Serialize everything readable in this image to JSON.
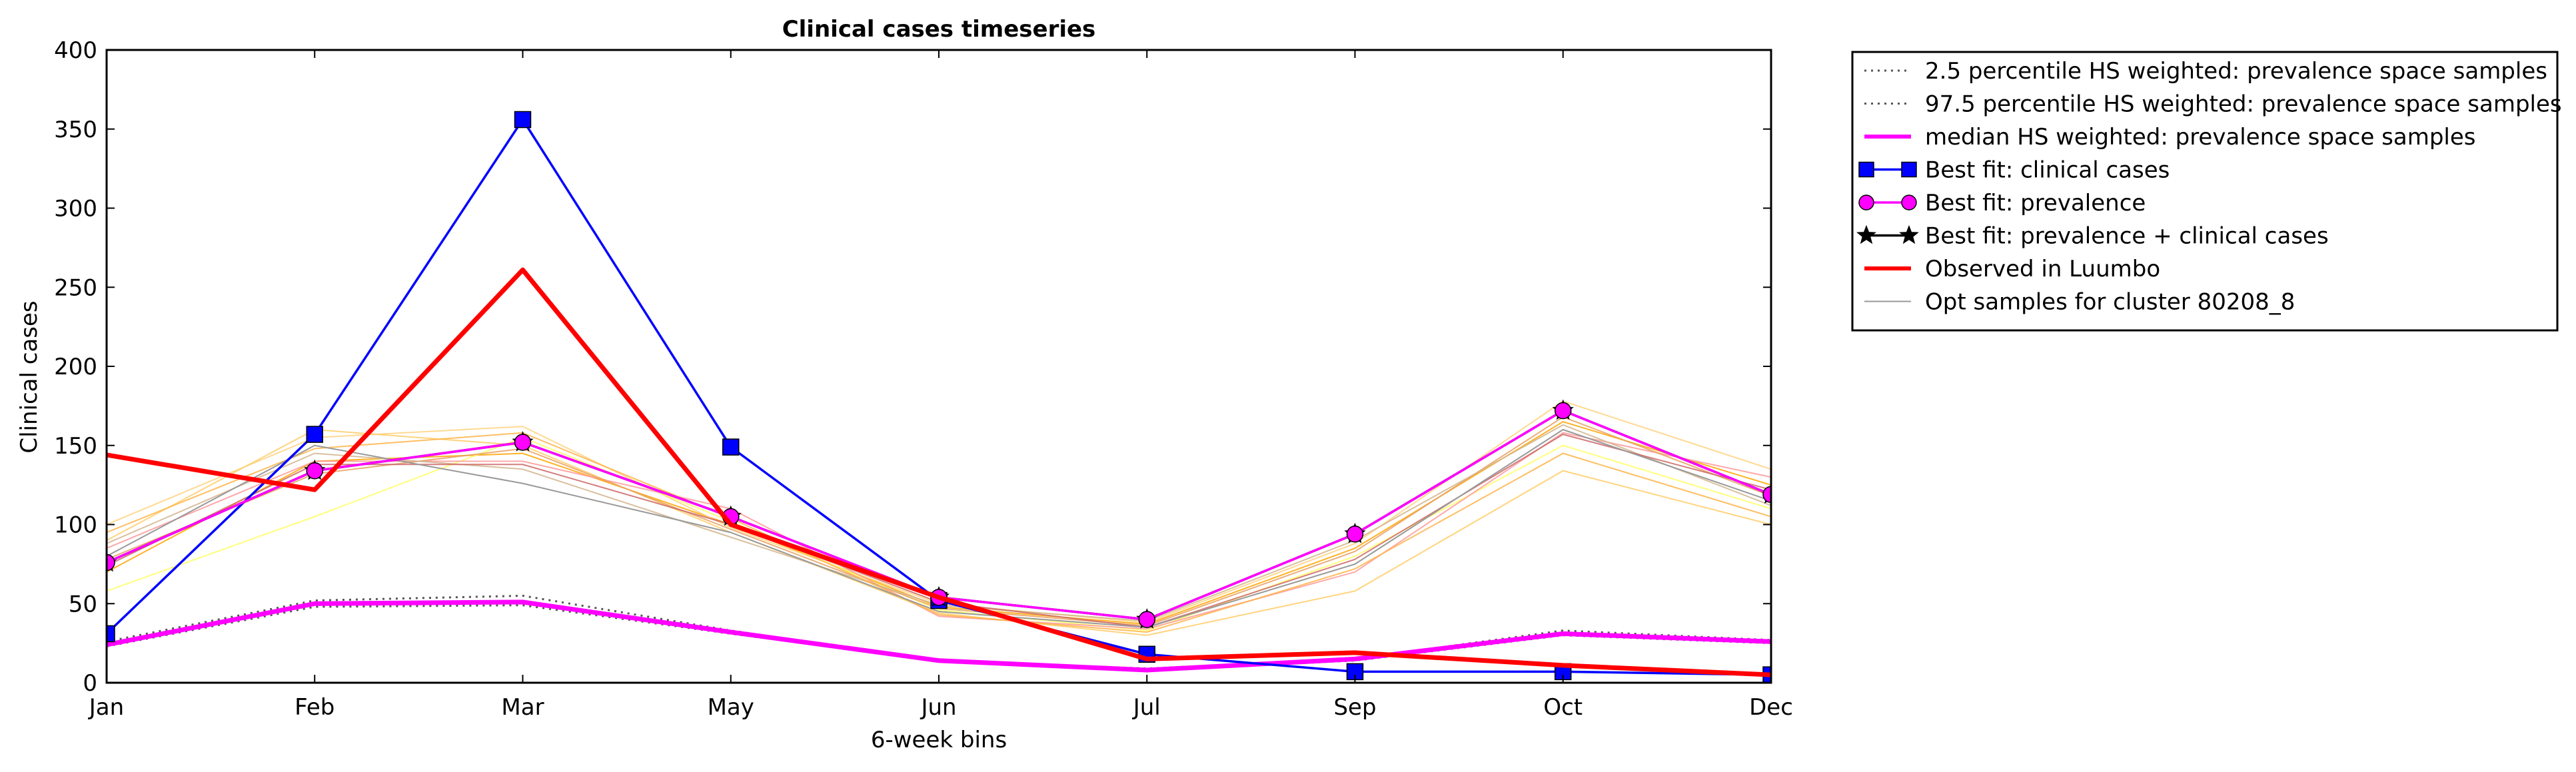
{
  "chart_data": {
    "type": "line",
    "title": "Clinical cases timeseries",
    "xlabel": "6-week bins",
    "ylabel": "Clinical cases",
    "categories": [
      "Jan",
      "Feb",
      "Mar",
      "May",
      "Jun",
      "Jul",
      "Sep",
      "Oct",
      "Dec"
    ],
    "ylim": [
      0,
      400
    ],
    "yticks": [
      "0",
      "50",
      "100",
      "150",
      "200",
      "250",
      "300",
      "350",
      "400"
    ],
    "grid": false,
    "legend_position": "outside-right",
    "series": [
      {
        "name": "2.5 percentile HS weighted: prevalence space samples",
        "style": "dotted",
        "color": "#555555",
        "values": [
          23,
          48,
          49,
          31,
          14,
          8,
          14,
          30,
          25
        ]
      },
      {
        "name": "97.5 percentile HS weighted: prevalence space samples",
        "style": "dotted",
        "color": "#555555",
        "values": [
          26,
          52,
          55,
          33,
          14,
          9,
          15,
          33,
          27
        ]
      },
      {
        "name": "median HS weighted: prevalence space samples",
        "style": "solid",
        "color": "#ff00ff",
        "values": [
          24,
          50,
          51,
          32,
          14,
          8,
          15,
          31,
          26
        ]
      },
      {
        "name": "Best fit: clinical cases",
        "style": "solid",
        "marker": "square",
        "color": "#0000ff",
        "values": [
          31,
          157,
          356,
          149,
          52,
          18,
          7,
          7,
          5
        ]
      },
      {
        "name": "Best fit: prevalence",
        "style": "solid",
        "marker": "circle",
        "color": "#ff00ff",
        "values": [
          76,
          134,
          152,
          105,
          54,
          40,
          94,
          172,
          119
        ]
      },
      {
        "name": "Best fit: prevalence + clinical cases",
        "style": "solid",
        "marker": "star",
        "color": "#000000",
        "values": [
          76,
          134,
          152,
          105,
          54,
          40,
          94,
          172,
          119
        ]
      },
      {
        "name": "Observed in Luumbo",
        "style": "solid",
        "color": "#ff0000",
        "values": [
          144,
          122,
          261,
          100,
          54,
          15,
          19,
          11,
          5
        ]
      },
      {
        "name": "Opt samples for cluster 80208_8",
        "style": "thin",
        "color": "#999999",
        "values": [
          80,
          150,
          126,
          95,
          45,
          35,
          75,
          160,
          115
        ]
      }
    ],
    "sample_lines": [
      {
        "color": "#ffa500",
        "values": [
          70,
          140,
          145,
          100,
          48,
          37,
          85,
          165,
          125
        ]
      },
      {
        "color": "#ffd27f",
        "values": [
          100,
          155,
          162,
          98,
          50,
          38,
          88,
          178,
          135
        ]
      },
      {
        "color": "#ffff66",
        "values": [
          58,
          105,
          155,
          102,
          46,
          33,
          80,
          150,
          110
        ]
      },
      {
        "color": "#ffcc66",
        "values": [
          90,
          160,
          150,
          95,
          44,
          30,
          58,
          134,
          100
        ]
      },
      {
        "color": "#ff9999",
        "values": [
          85,
          140,
          140,
          110,
          42,
          34,
          70,
          158,
          130
        ]
      },
      {
        "color": "#e8a060",
        "values": [
          78,
          132,
          148,
          97,
          47,
          36,
          83,
          168,
          118
        ]
      },
      {
        "color": "#d2b48c",
        "values": [
          88,
          145,
          135,
          92,
          49,
          39,
          90,
          163,
          112
        ]
      },
      {
        "color": "#cc6666",
        "values": [
          74,
          138,
          138,
          100,
          51,
          35,
          78,
          157,
          122
        ]
      },
      {
        "color": "#ffb347",
        "values": [
          95,
          148,
          158,
          104,
          43,
          32,
          72,
          145,
          105
        ]
      }
    ]
  }
}
